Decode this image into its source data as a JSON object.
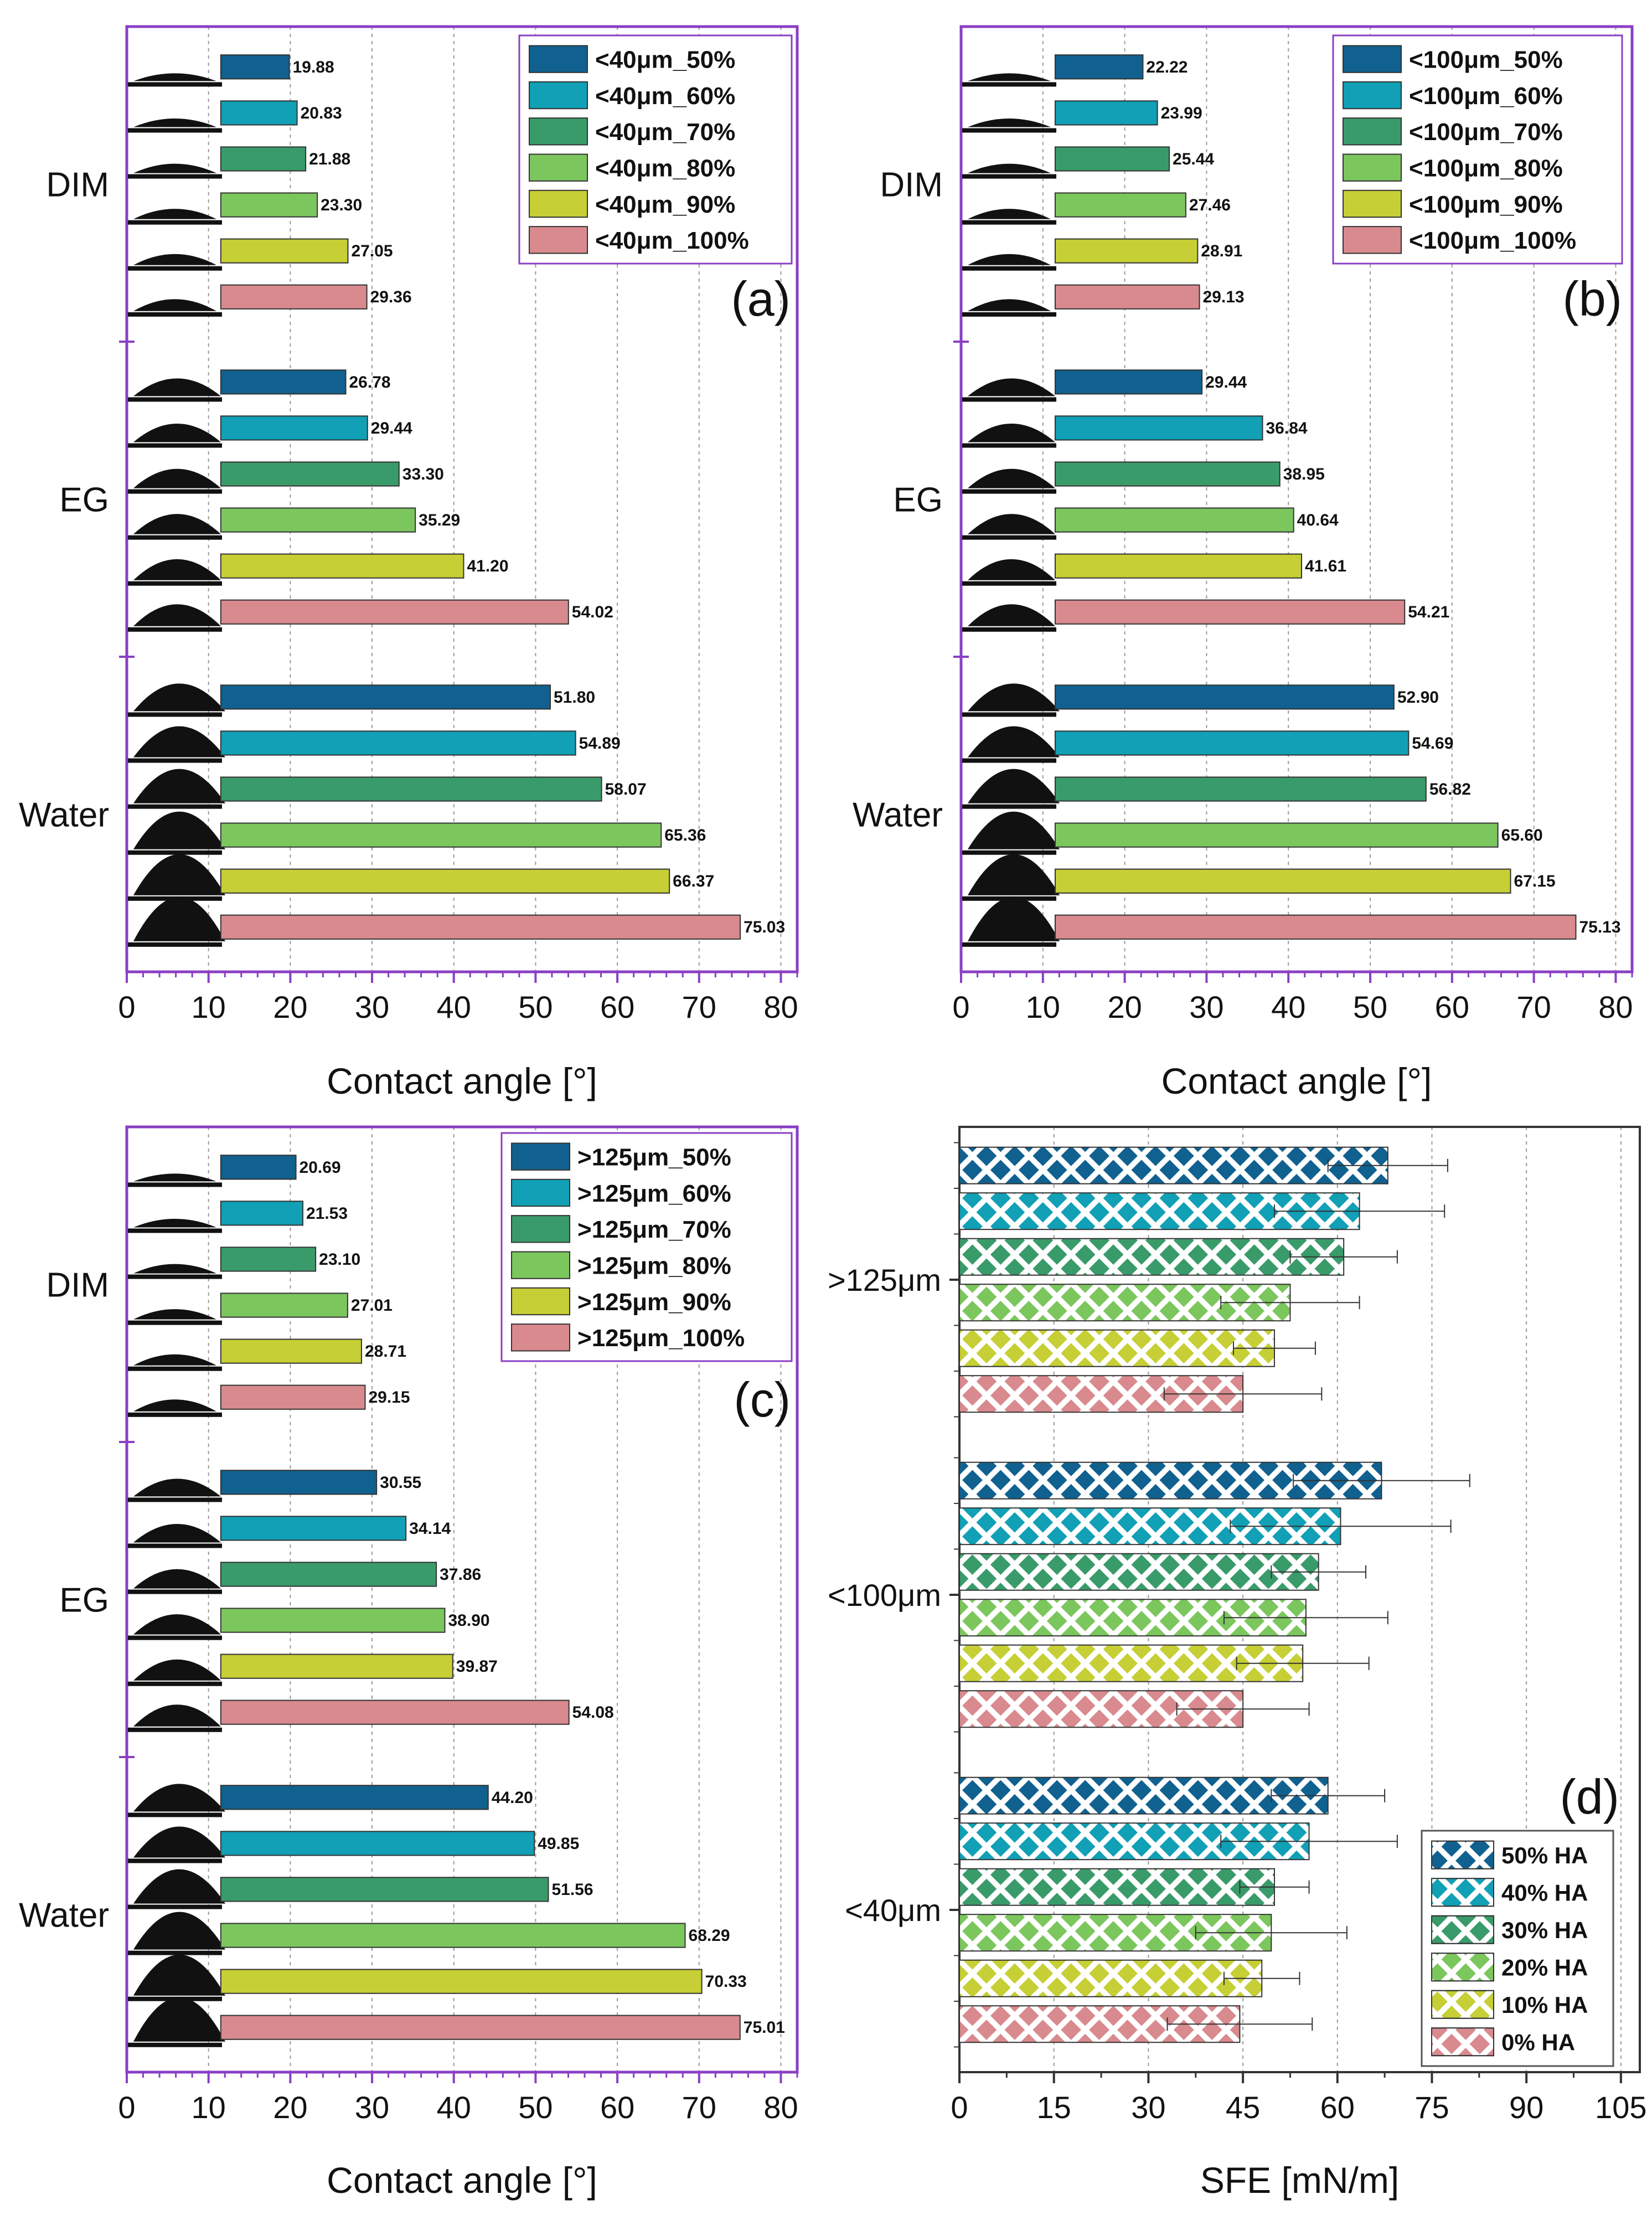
{
  "chart_data": [
    {
      "type": "bar",
      "panel_label": "(a)",
      "xlabel": "Contact angle [°]",
      "xlim": [
        0,
        82
      ],
      "xticks": [
        0,
        10,
        20,
        30,
        40,
        50,
        60,
        70,
        80
      ],
      "legend_position": "top-right",
      "categories": [
        "DIM",
        "EG",
        "Water"
      ],
      "series": [
        {
          "name": "<40μm_50%",
          "color": "#10618f",
          "values": [
            19.88,
            26.78,
            51.8
          ],
          "labels": [
            "19.88",
            "26.78",
            "51.80"
          ]
        },
        {
          "name": "<40μm_60%",
          "color": "#11a0b5",
          "values": [
            20.83,
            29.44,
            54.89
          ],
          "labels": [
            "20.83",
            "29.44",
            "54.89"
          ]
        },
        {
          "name": "<40μm_70%",
          "color": "#3a9b6a",
          "values": [
            21.88,
            33.3,
            58.07
          ],
          "labels": [
            "21.88",
            "33.30",
            "58.07"
          ]
        },
        {
          "name": "<40μm_80%",
          "color": "#7cc65e",
          "values": [
            23.3,
            35.29,
            65.36
          ],
          "labels": [
            "23.30",
            "35.29",
            "65.36"
          ]
        },
        {
          "name": "<40μm_90%",
          "color": "#c6cf35",
          "values": [
            27.05,
            41.2,
            66.37
          ],
          "labels": [
            "27.05",
            "41.20",
            "66.37"
          ]
        },
        {
          "name": "<40μm_100%",
          "color": "#d98a8e",
          "values": [
            29.36,
            54.02,
            75.03
          ],
          "labels": [
            "29.36",
            "54.02",
            "75.03"
          ]
        }
      ]
    },
    {
      "type": "bar",
      "panel_label": "(b)",
      "xlabel": "Contact angle [°]",
      "xlim": [
        0,
        82
      ],
      "xticks": [
        0,
        10,
        20,
        30,
        40,
        50,
        60,
        70,
        80
      ],
      "legend_position": "top-right",
      "categories": [
        "DIM",
        "EG",
        "Water"
      ],
      "series": [
        {
          "name": "<100μm_50%",
          "color": "#10618f",
          "values": [
            22.22,
            29.44,
            52.9
          ],
          "labels": [
            "22.22",
            "29.44",
            "52.90"
          ]
        },
        {
          "name": "<100μm_60%",
          "color": "#11a0b5",
          "values": [
            23.99,
            36.84,
            54.69
          ],
          "labels": [
            "23.99",
            "36.84",
            "54.69"
          ]
        },
        {
          "name": "<100μm_70%",
          "color": "#3a9b6a",
          "values": [
            25.44,
            38.95,
            56.82
          ],
          "labels": [
            "25.44",
            "38.95",
            "56.82"
          ]
        },
        {
          "name": "<100μm_80%",
          "color": "#7cc65e",
          "values": [
            27.46,
            40.64,
            65.6
          ],
          "labels": [
            "27.46",
            "40.64",
            "65.60"
          ]
        },
        {
          "name": "<100μm_90%",
          "color": "#c6cf35",
          "values": [
            28.91,
            41.61,
            67.15
          ],
          "labels": [
            "28.91",
            "41.61",
            "67.15"
          ]
        },
        {
          "name": "<100μm_100%",
          "color": "#d98a8e",
          "values": [
            29.13,
            54.21,
            75.13
          ],
          "labels": [
            "29.13",
            "54.21",
            "75.13"
          ]
        }
      ]
    },
    {
      "type": "bar",
      "panel_label": "(c)",
      "xlabel": "Contact angle [°]",
      "xlim": [
        0,
        82
      ],
      "xticks": [
        0,
        10,
        20,
        30,
        40,
        50,
        60,
        70,
        80
      ],
      "legend_position": "top-right",
      "categories": [
        "DIM",
        "EG",
        "Water"
      ],
      "series": [
        {
          "name": ">125μm_50%",
          "color": "#10618f",
          "values": [
            20.69,
            30.55,
            44.2
          ],
          "labels": [
            "20.69",
            "30.55",
            "44.20"
          ]
        },
        {
          "name": ">125μm_60%",
          "color": "#11a0b5",
          "values": [
            21.53,
            34.14,
            49.85
          ],
          "labels": [
            "21.53",
            "34.14",
            "49.85"
          ]
        },
        {
          "name": ">125μm_70%",
          "color": "#3a9b6a",
          "values": [
            23.1,
            37.86,
            51.56
          ],
          "labels": [
            "23.10",
            "37.86",
            "51.56"
          ]
        },
        {
          "name": ">125μm_80%",
          "color": "#7cc65e",
          "values": [
            27.01,
            38.9,
            68.29
          ],
          "labels": [
            "27.01",
            "38.90",
            "68.29"
          ]
        },
        {
          "name": ">125μm_90%",
          "color": "#c6cf35",
          "values": [
            28.71,
            39.87,
            70.33
          ],
          "labels": [
            "28.71",
            "39.87",
            "70.33"
          ]
        },
        {
          "name": ">125μm_100%",
          "color": "#d98a8e",
          "values": [
            29.15,
            54.08,
            75.01
          ],
          "labels": [
            "29.15",
            "54.08",
            "75.01"
          ]
        }
      ]
    },
    {
      "type": "bar",
      "panel_label": "(d)",
      "xlabel": "SFE [mN/m]",
      "xlim": [
        0,
        108
      ],
      "xticks": [
        0,
        15,
        30,
        45,
        60,
        75,
        90,
        105
      ],
      "legend_position": "bottom-right",
      "categories": [
        ">125μm",
        "<100μm",
        "<40μm"
      ],
      "series": [
        {
          "name": "50% HA",
          "color": "#10618f",
          "values": [
            68,
            67,
            58.5
          ],
          "errors": [
            9.5,
            14,
            9
          ]
        },
        {
          "name": "40% HA",
          "color": "#11a0b5",
          "values": [
            63.5,
            60.5,
            55.5
          ],
          "errors": [
            13.5,
            17.5,
            14
          ]
        },
        {
          "name": "30% HA",
          "color": "#3a9b6a",
          "values": [
            61,
            57,
            50
          ],
          "errors": [
            8.5,
            7.5,
            5.5
          ]
        },
        {
          "name": "20% HA",
          "color": "#7cc65e",
          "values": [
            52.5,
            55,
            49.5
          ],
          "errors": [
            11,
            13,
            12
          ]
        },
        {
          "name": "10% HA",
          "color": "#c6cf35",
          "values": [
            50,
            54.5,
            48
          ],
          "errors": [
            6.5,
            10.5,
            6
          ]
        },
        {
          "name": "0% HA",
          "color": "#d98a8e",
          "values": [
            45,
            45,
            44.5
          ],
          "errors": [
            12.5,
            10.5,
            11.5
          ]
        }
      ]
    }
  ]
}
